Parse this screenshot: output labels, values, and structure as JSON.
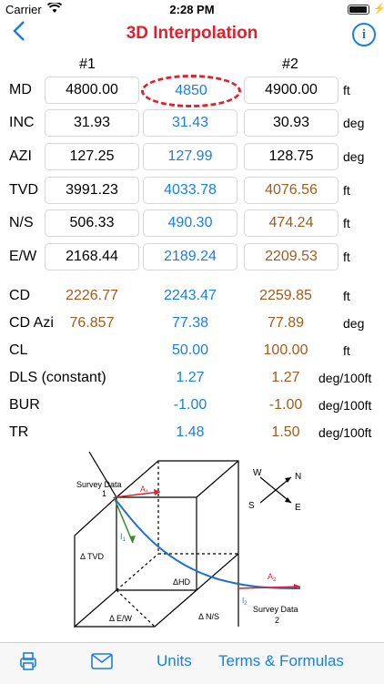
{
  "status": {
    "carrier": "Carrier",
    "time": "2:28 PM",
    "battery_level": 0.95
  },
  "nav": {
    "title": "3D Interpolation",
    "info": "i"
  },
  "columns": {
    "first": "#1",
    "second": "#2"
  },
  "rows": [
    {
      "label": "MD",
      "v1": "4800.00",
      "mid": "4850",
      "v2": "4900.00",
      "unit": "ft"
    },
    {
      "label": "INC",
      "v1": "31.93",
      "mid": "31.43",
      "v2": "30.93",
      "unit": "deg"
    },
    {
      "label": "AZI",
      "v1": "127.25",
      "mid": "127.99",
      "v2": "128.75",
      "unit": "deg"
    },
    {
      "label": "TVD",
      "v1": "3991.23",
      "mid": "4033.78",
      "v2": "4076.56",
      "unit": "ft"
    },
    {
      "label": "N/S",
      "v1": "506.33",
      "mid": "490.30",
      "v2": "474.24",
      "unit": "ft"
    },
    {
      "label": "E/W",
      "v1": "2168.44",
      "mid": "2189.24",
      "v2": "2209.53",
      "unit": "ft"
    },
    {
      "label": "CD",
      "v1": "2226.77",
      "mid": "2243.47",
      "v2": "2259.85",
      "unit": "ft"
    },
    {
      "label": "CD Azi",
      "v1": "76.857",
      "mid": "77.38",
      "v2": "77.89",
      "unit": "deg"
    },
    {
      "label": "CL",
      "v1": "",
      "mid": "50.00",
      "v2": "100.00",
      "unit": "ft"
    },
    {
      "label": "DLS (constant)",
      "v1": "",
      "mid": "1.27",
      "v2": "1.27",
      "unit": "deg/100ft"
    },
    {
      "label": "BUR",
      "v1": "",
      "mid": "-1.00",
      "v2": "-1.00",
      "unit": "deg/100ft"
    },
    {
      "label": "TR",
      "v1": "",
      "mid": "1.48",
      "v2": "1.50",
      "unit": "deg/100ft"
    }
  ],
  "diagram": {
    "survey1": "Survey Data",
    "survey1_num": "1",
    "survey2": "Survey Data",
    "survey2_num": "2",
    "a1": "A",
    "a1_sub": "1",
    "a2": "A",
    "a2_sub": "2",
    "i1": "I",
    "i1_sub": "1",
    "i2": "I",
    "i2_sub": "2",
    "tvd": "Δ TVD",
    "hd": "ΔHD",
    "ew": "Δ E/W",
    "ns": "Δ N/S",
    "compass": {
      "w": "W",
      "n": "N",
      "s": "S",
      "e": "E"
    }
  },
  "toolbar": {
    "units": "Units",
    "terms": "Terms & Formulas"
  },
  "colors": {
    "accent": "#1a7fe0",
    "title": "#e0212d",
    "computed": "#a05c1c"
  }
}
